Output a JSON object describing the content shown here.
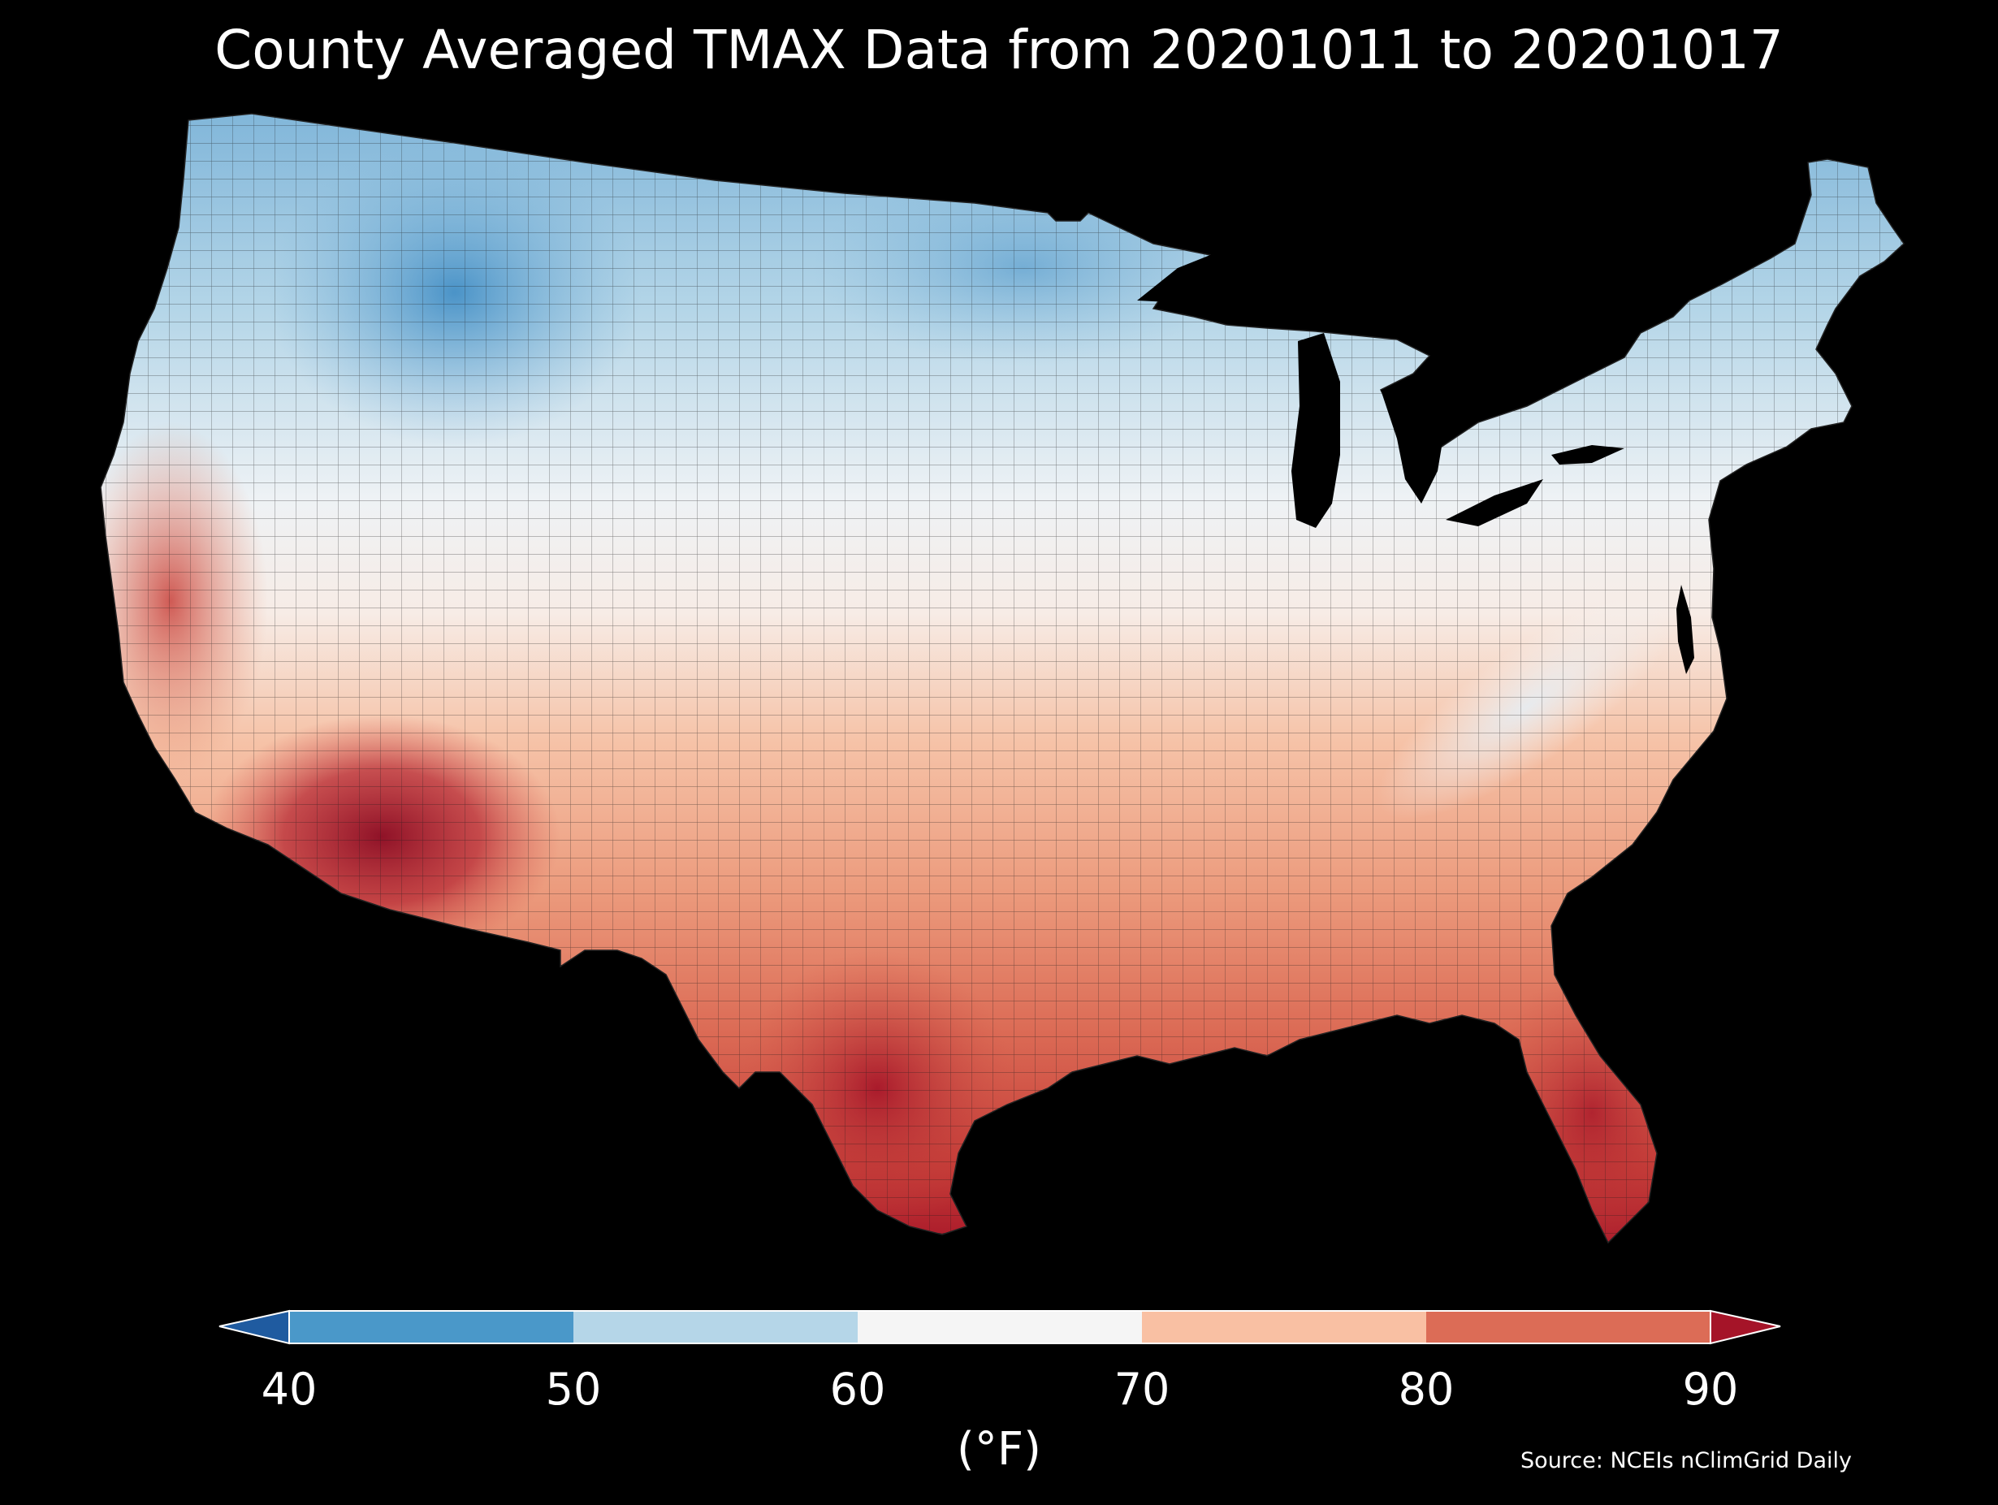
{
  "title": "County Averaged TMAX Data from 20201011 to 20201017",
  "colors": {
    "background": "#000000",
    "text": "#ffffff",
    "county_line": "#1a1a1a"
  },
  "legend": {
    "unit": "(°F)",
    "ticks": [
      "40",
      "50",
      "60",
      "70",
      "80",
      "90"
    ],
    "bins": [
      {
        "label": "below 40",
        "color": "#1f5ba0",
        "kind": "under"
      },
      {
        "label": "40-50",
        "color": "#4a98c9",
        "kind": "bin"
      },
      {
        "label": "50-60",
        "color": "#b5d6e8",
        "kind": "bin"
      },
      {
        "label": "60-70",
        "color": "#f5f5f5",
        "kind": "bin"
      },
      {
        "label": "70-80",
        "color": "#f9c0a3",
        "kind": "bin"
      },
      {
        "label": "80-90",
        "color": "#dc6c56",
        "kind": "bin"
      },
      {
        "label": "above 90",
        "color": "#a51428",
        "kind": "over"
      }
    ]
  },
  "source": "Source: NCEIs nClimGrid Daily"
}
